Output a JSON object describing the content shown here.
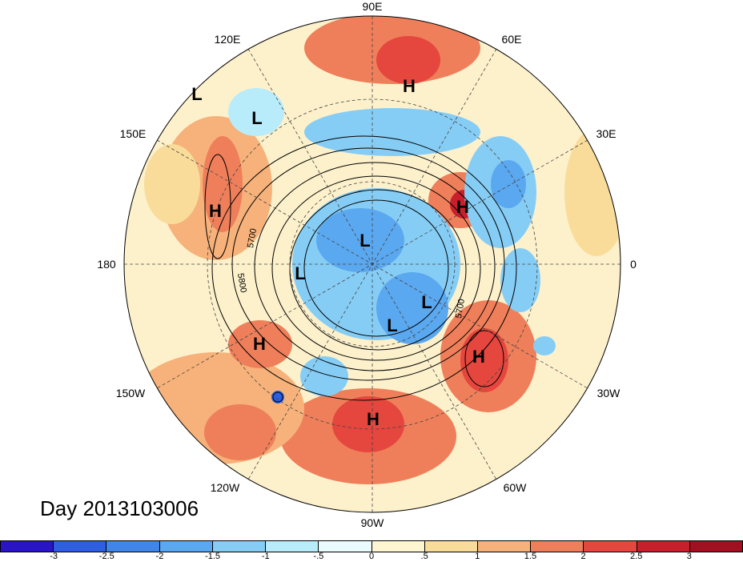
{
  "title": "Day 2013103006",
  "longitude_labels": {
    "top": "90E",
    "top_left": "120E",
    "top_right": "60E",
    "upper_left": "150E",
    "upper_right": "30E",
    "left": "180",
    "right": "0",
    "lower_left": "150W",
    "lower_right": "30W",
    "bottom_left": "120W",
    "bottom_right": "60W",
    "bottom": "90W"
  },
  "pressure_centers": {
    "h_north_asia": "H",
    "h_europe": "H",
    "h_north_pacific": "H",
    "h_atlantic": "H",
    "h_east_pacific": "H",
    "h_gulf": "H",
    "l_northwest_pacific": "L",
    "l_kamchatka": "L",
    "l_arctic": "L",
    "l_alaska": "L",
    "l_greenland": "L",
    "l_baffin": "L"
  },
  "contour_labels": {
    "c5700_west": "5700",
    "c5800_west": "5800",
    "c5700_east": "5700"
  },
  "colorbar": {
    "ticks": [
      "-3",
      "-2.5",
      "-2",
      "-1.5",
      "-1",
      "-.5",
      "0",
      ".5",
      "1",
      "1.5",
      "2",
      "2.5",
      "3"
    ],
    "colors": [
      "#2a14c8",
      "#2e5fe0",
      "#3f86e8",
      "#5aa8f0",
      "#86cdf5",
      "#b8ecfa",
      "#e9fbfd",
      "#fdf6d0",
      "#f9dc9a",
      "#f6b27a",
      "#ef7f5a",
      "#e5463e",
      "#c81f2c",
      "#a01020"
    ]
  },
  "colors": {
    "negative": "#5aa8f0",
    "positive": "#ef7f5a",
    "neutral": "#fdf8e4"
  }
}
